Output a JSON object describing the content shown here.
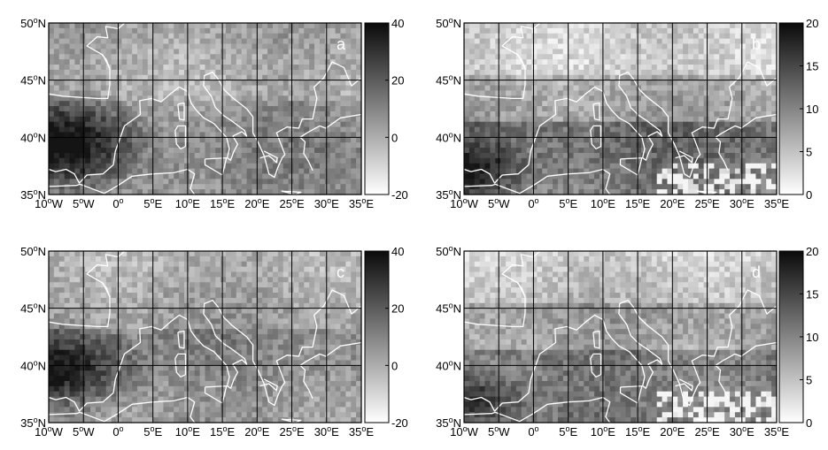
{
  "panels": [
    {
      "id": "a",
      "letter": "a",
      "colorbar": {
        "min": -20,
        "max": 40,
        "ticks": [
          "40",
          "20",
          "0",
          "-20"
        ]
      }
    },
    {
      "id": "b",
      "letter": "b",
      "colorbar": {
        "min": 0,
        "max": 20,
        "ticks": [
          "20",
          "15",
          "10",
          "5",
          "0"
        ]
      }
    },
    {
      "id": "c",
      "letter": "c",
      "colorbar": {
        "min": -20,
        "max": 40,
        "ticks": [
          "40",
          "20",
          "0",
          "-20"
        ]
      }
    },
    {
      "id": "d",
      "letter": "d",
      "colorbar": {
        "min": 0,
        "max": 20,
        "ticks": [
          "20",
          "15",
          "10",
          "5",
          "0"
        ]
      }
    }
  ],
  "axes": {
    "lon_ticks": [
      {
        "deg": "10",
        "sup": "o",
        "hem": "W"
      },
      {
        "deg": "5",
        "sup": "o",
        "hem": "W"
      },
      {
        "deg": "0",
        "sup": "o",
        "hem": ""
      },
      {
        "deg": "5",
        "sup": "o",
        "hem": "E"
      },
      {
        "deg": "10",
        "sup": "o",
        "hem": "E"
      },
      {
        "deg": "15",
        "sup": "o",
        "hem": "E"
      },
      {
        "deg": "20",
        "sup": "o",
        "hem": "E"
      },
      {
        "deg": "25",
        "sup": "o",
        "hem": "E"
      },
      {
        "deg": "30",
        "sup": "o",
        "hem": "E"
      },
      {
        "deg": "35",
        "sup": "o",
        "hem": "E"
      }
    ],
    "lat_ticks": [
      {
        "deg": "50",
        "sup": "o",
        "hem": "N"
      },
      {
        "deg": "45",
        "sup": "o",
        "hem": "N"
      },
      {
        "deg": "40",
        "sup": "o",
        "hem": "N"
      },
      {
        "deg": "35",
        "sup": "o",
        "hem": "N"
      }
    ],
    "lon_range": [
      -10,
      35
    ],
    "lat_range": [
      35,
      50
    ]
  },
  "colors": {
    "background": "#ffffff",
    "grid": "#000000",
    "coastline": "#ffffff",
    "field_light": "#f2f2f2",
    "field_dark": "#111111"
  }
}
